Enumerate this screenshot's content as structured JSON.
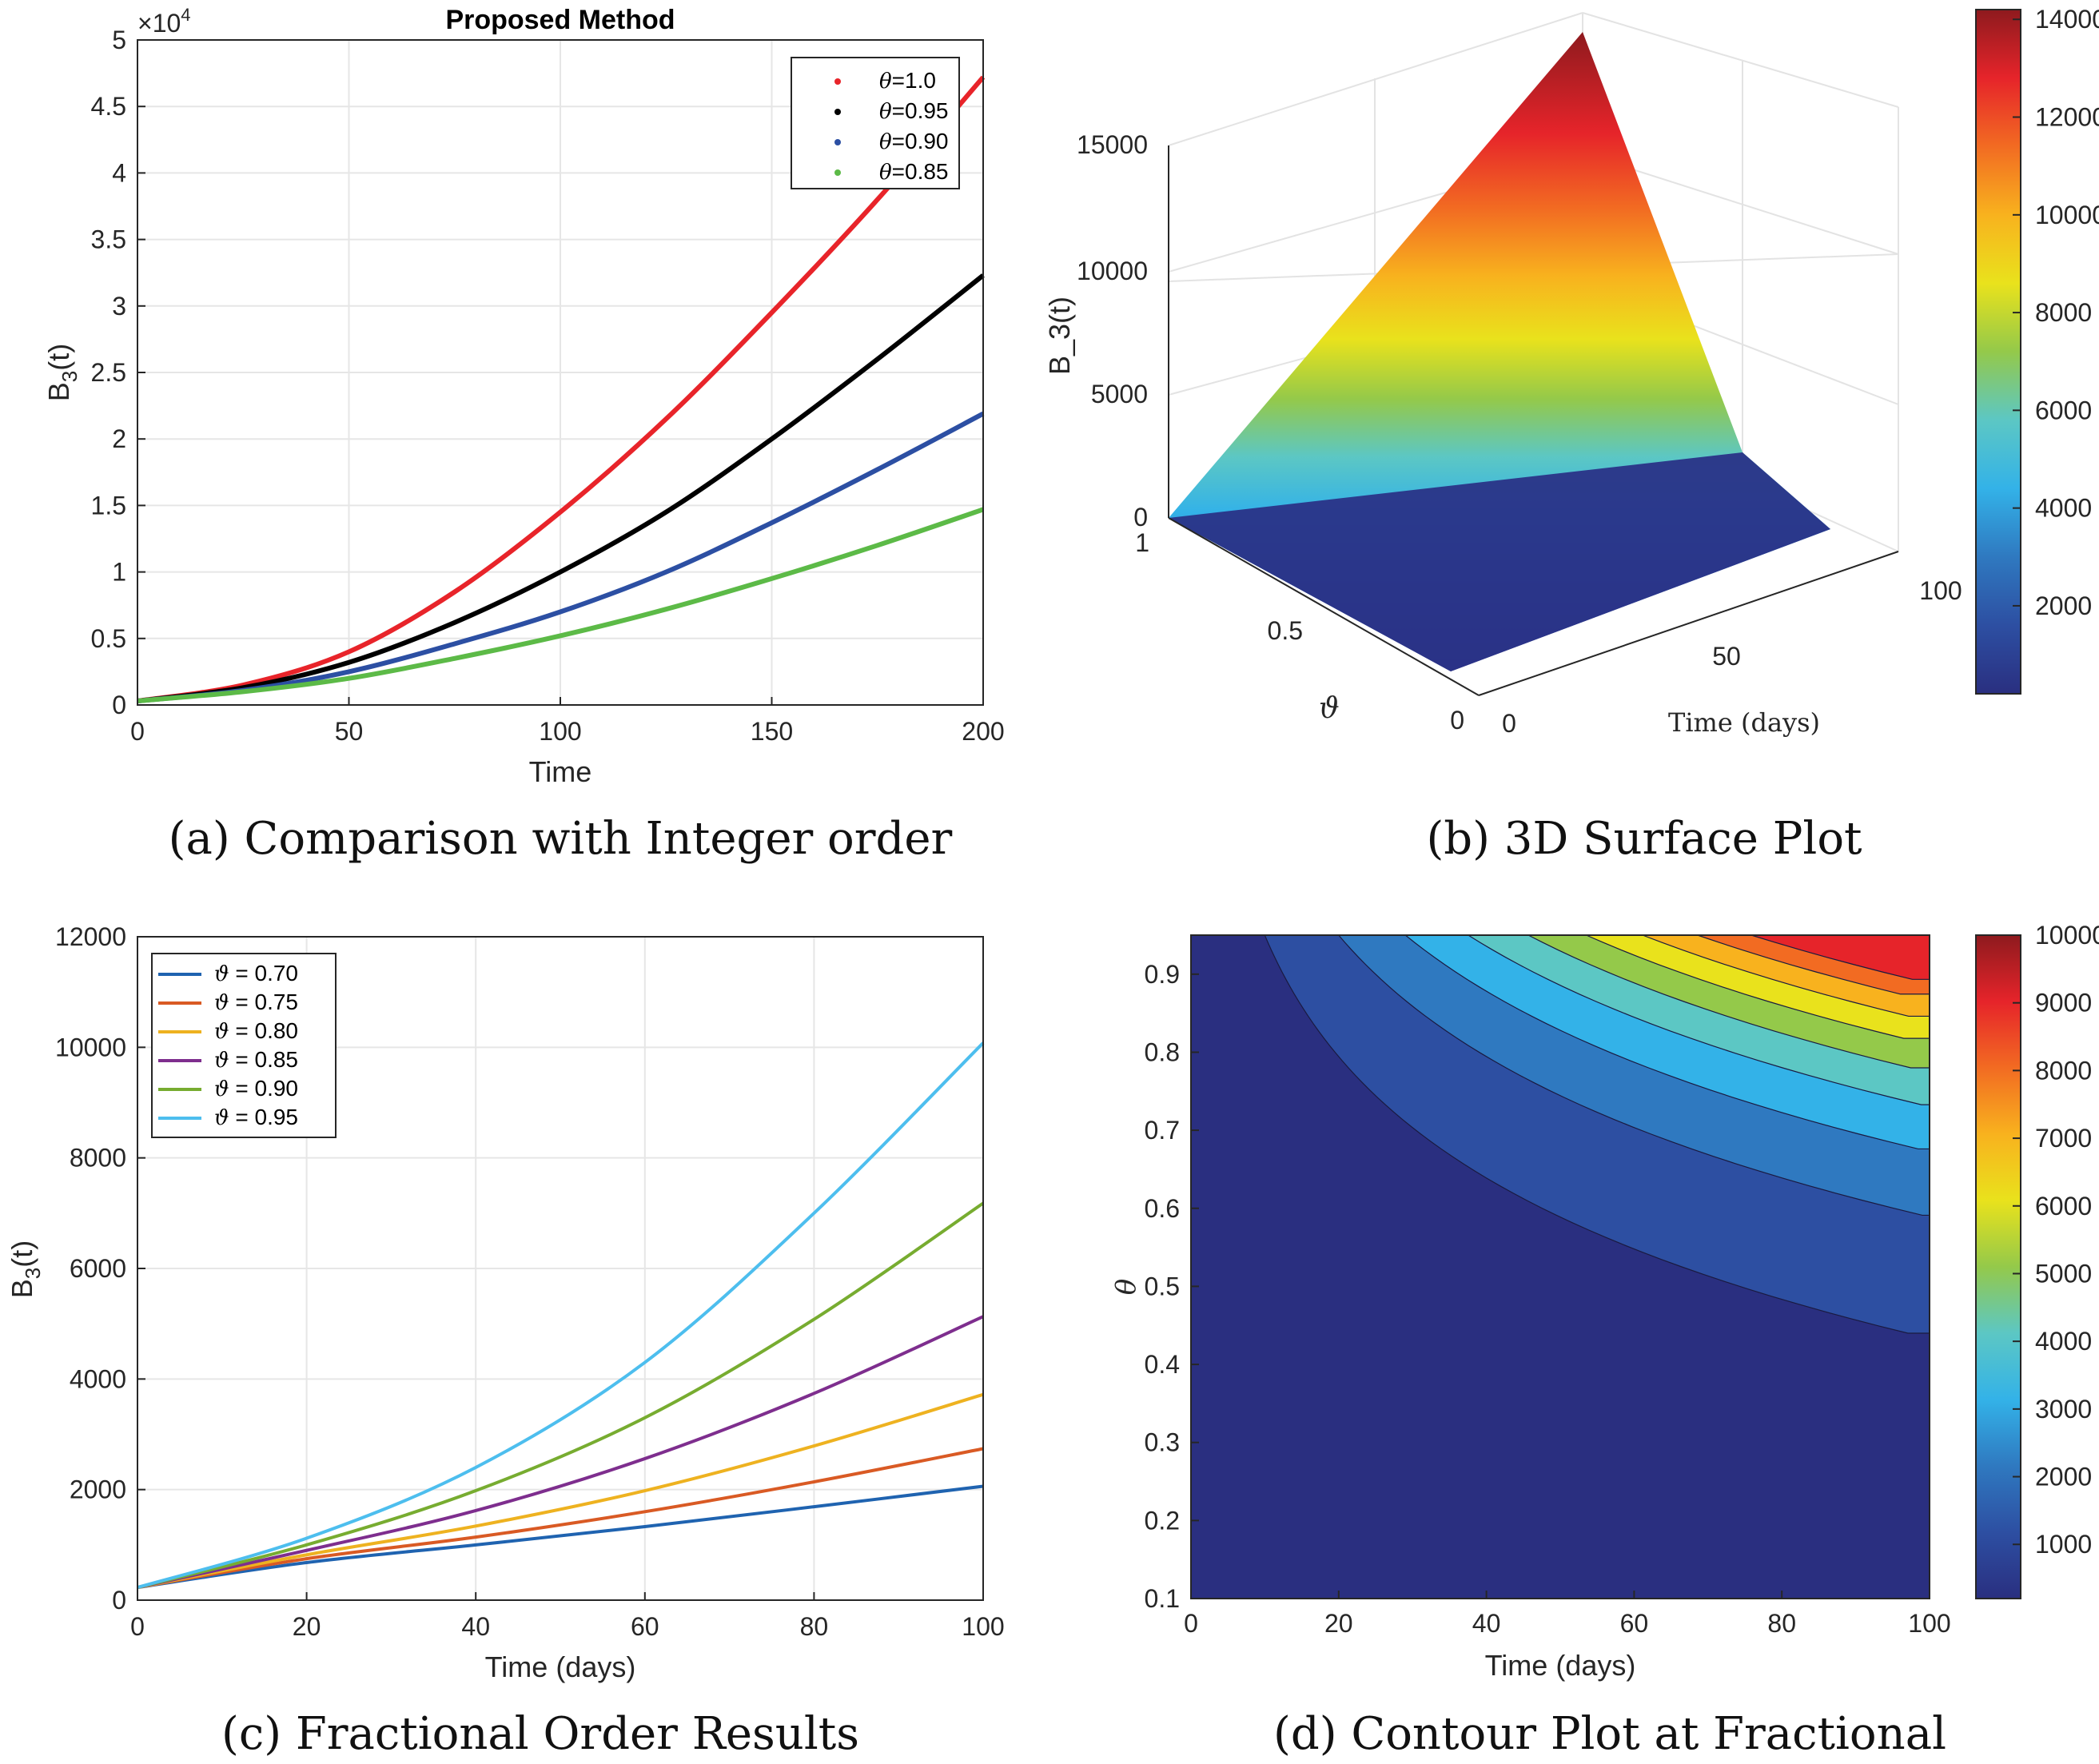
{
  "chart_data": [
    {
      "id": "a",
      "type": "line",
      "title": "Proposed Method",
      "caption": "(a) Comparison with Integer order",
      "xlabel": "Time",
      "ylabel": "B3(t)",
      "ylabel_main": "B",
      "ylabel_sub": "3",
      "ylabel_rest": "(t)",
      "exponent_label": "×10",
      "exponent_power": "4",
      "xlim": [
        0,
        200
      ],
      "ylim": [
        0,
        5
      ],
      "xticks": [
        "0",
        "50",
        "100",
        "150",
        "200"
      ],
      "yticks": [
        "0",
        "0.5",
        "1",
        "1.5",
        "2",
        "2.5",
        "3",
        "3.5",
        "4",
        "4.5",
        "5"
      ],
      "x": [
        0,
        25,
        50,
        75,
        100,
        125,
        150,
        175,
        200
      ],
      "series": [
        {
          "name": "θ=1.0",
          "color": "#e8242a",
          "values": [
            0.03,
            0.15,
            0.4,
            0.85,
            1.45,
            2.15,
            2.95,
            3.8,
            4.72
          ]
        },
        {
          "name": "θ=0.95",
          "color": "#000000",
          "values": [
            0.03,
            0.13,
            0.32,
            0.62,
            1.0,
            1.45,
            2.0,
            2.6,
            3.23
          ]
        },
        {
          "name": "θ=0.90",
          "color": "#2c4fa3",
          "values": [
            0.03,
            0.11,
            0.25,
            0.46,
            0.7,
            1.0,
            1.37,
            1.77,
            2.19
          ]
        },
        {
          "name": "θ=0.85",
          "color": "#5cba47",
          "values": [
            0.03,
            0.1,
            0.2,
            0.35,
            0.52,
            0.72,
            0.95,
            1.2,
            1.47
          ]
        }
      ],
      "legend": [
        {
          "sym": "θ",
          "val": "=1.0"
        },
        {
          "sym": "θ",
          "val": "=0.95"
        },
        {
          "sym": "θ",
          "val": "=0.90"
        },
        {
          "sym": "θ",
          "val": "=0.85"
        }
      ]
    },
    {
      "id": "b",
      "type": "surface",
      "caption": "(b) 3D Surface Plot",
      "zlabel": "B_3(t)",
      "xlabel": "Time (days)",
      "ylabel": "ϑ",
      "zticks": [
        "0",
        "5000",
        "10000",
        "15000"
      ],
      "xticks": [
        "0",
        "50",
        "100"
      ],
      "yticks": [
        "0",
        "0.5",
        "1"
      ],
      "zlim": [
        0,
        15000
      ],
      "zmax": 14200,
      "colorbar_ticks": [
        "2000",
        "4000",
        "6000",
        "8000",
        "10000",
        "12000",
        "14000"
      ],
      "colorbar_range": [
        200,
        14200
      ],
      "colormap": [
        "#2a2f80",
        "#2d4fa2",
        "#2f79c0",
        "#33b2e8",
        "#5cc7c4",
        "#94c94a",
        "#e9e21c",
        "#f8b21e",
        "#f26b22",
        "#e6242a",
        "#8e1a1e"
      ]
    },
    {
      "id": "c",
      "type": "line",
      "caption": "(c) Fractional Order Results",
      "xlabel": "Time (days)",
      "ylabel": "B3(t)",
      "ylabel_main": "B",
      "ylabel_sub": "3",
      "ylabel_rest": "(t)",
      "xlim": [
        0,
        100
      ],
      "ylim": [
        0,
        12000
      ],
      "xticks": [
        "0",
        "20",
        "40",
        "60",
        "80",
        "100"
      ],
      "yticks": [
        "0",
        "2000",
        "4000",
        "6000",
        "8000",
        "10000",
        "12000"
      ],
      "x": [
        0,
        20,
        40,
        60,
        80,
        100
      ],
      "series": [
        {
          "name": "ϑ = 0.70",
          "color": "#1f63b0",
          "values": [
            230,
            680,
            1000,
            1330,
            1690,
            2060
          ]
        },
        {
          "name": "ϑ = 0.75",
          "color": "#d95a24",
          "values": [
            230,
            750,
            1140,
            1600,
            2140,
            2740
          ]
        },
        {
          "name": "ϑ = 0.80",
          "color": "#eeb220",
          "values": [
            230,
            820,
            1340,
            1980,
            2790,
            3720
          ]
        },
        {
          "name": "ϑ = 0.85",
          "color": "#7e2e8e",
          "values": [
            230,
            900,
            1620,
            2560,
            3740,
            5130
          ]
        },
        {
          "name": "ϑ = 0.90",
          "color": "#77ac30",
          "values": [
            230,
            1000,
            1980,
            3300,
            5080,
            7180
          ]
        },
        {
          "name": "ϑ = 0.95",
          "color": "#4dbeee",
          "values": [
            230,
            1120,
            2400,
            4300,
            7000,
            10080
          ]
        }
      ],
      "legend": [
        {
          "sym": "ϑ",
          "val": " = 0.70"
        },
        {
          "sym": "ϑ",
          "val": " = 0.75"
        },
        {
          "sym": "ϑ",
          "val": " = 0.80"
        },
        {
          "sym": "ϑ",
          "val": " = 0.85"
        },
        {
          "sym": "ϑ",
          "val": " = 0.90"
        },
        {
          "sym": "ϑ",
          "val": " = 0.95"
        }
      ]
    },
    {
      "id": "d",
      "type": "contour",
      "caption": "(d) Contour Plot at Fractional",
      "xlabel": "Time (days)",
      "ylabel": "θ",
      "xlim": [
        0,
        100
      ],
      "ylim": [
        0.1,
        0.95
      ],
      "xticks": [
        "0",
        "20",
        "40",
        "60",
        "80",
        "100"
      ],
      "yticks": [
        "0.1",
        "0.2",
        "0.3",
        "0.4",
        "0.5",
        "0.6",
        "0.7",
        "0.8",
        "0.9"
      ],
      "levels": [
        1000,
        2000,
        3000,
        4000,
        5000,
        6000,
        7000,
        8000,
        9000
      ],
      "colorbar_ticks": [
        "1000",
        "2000",
        "3000",
        "4000",
        "5000",
        "6000",
        "7000",
        "8000",
        "9000",
        "10000"
      ],
      "colorbar_range": [
        200,
        10000
      ],
      "colormap": [
        "#2a2f80",
        "#2d4fa2",
        "#2f79c0",
        "#33b2e8",
        "#5cc7c4",
        "#94c94a",
        "#e9e21c",
        "#f8b21e",
        "#f26b22",
        "#e6242a",
        "#8e1a1e"
      ]
    }
  ]
}
